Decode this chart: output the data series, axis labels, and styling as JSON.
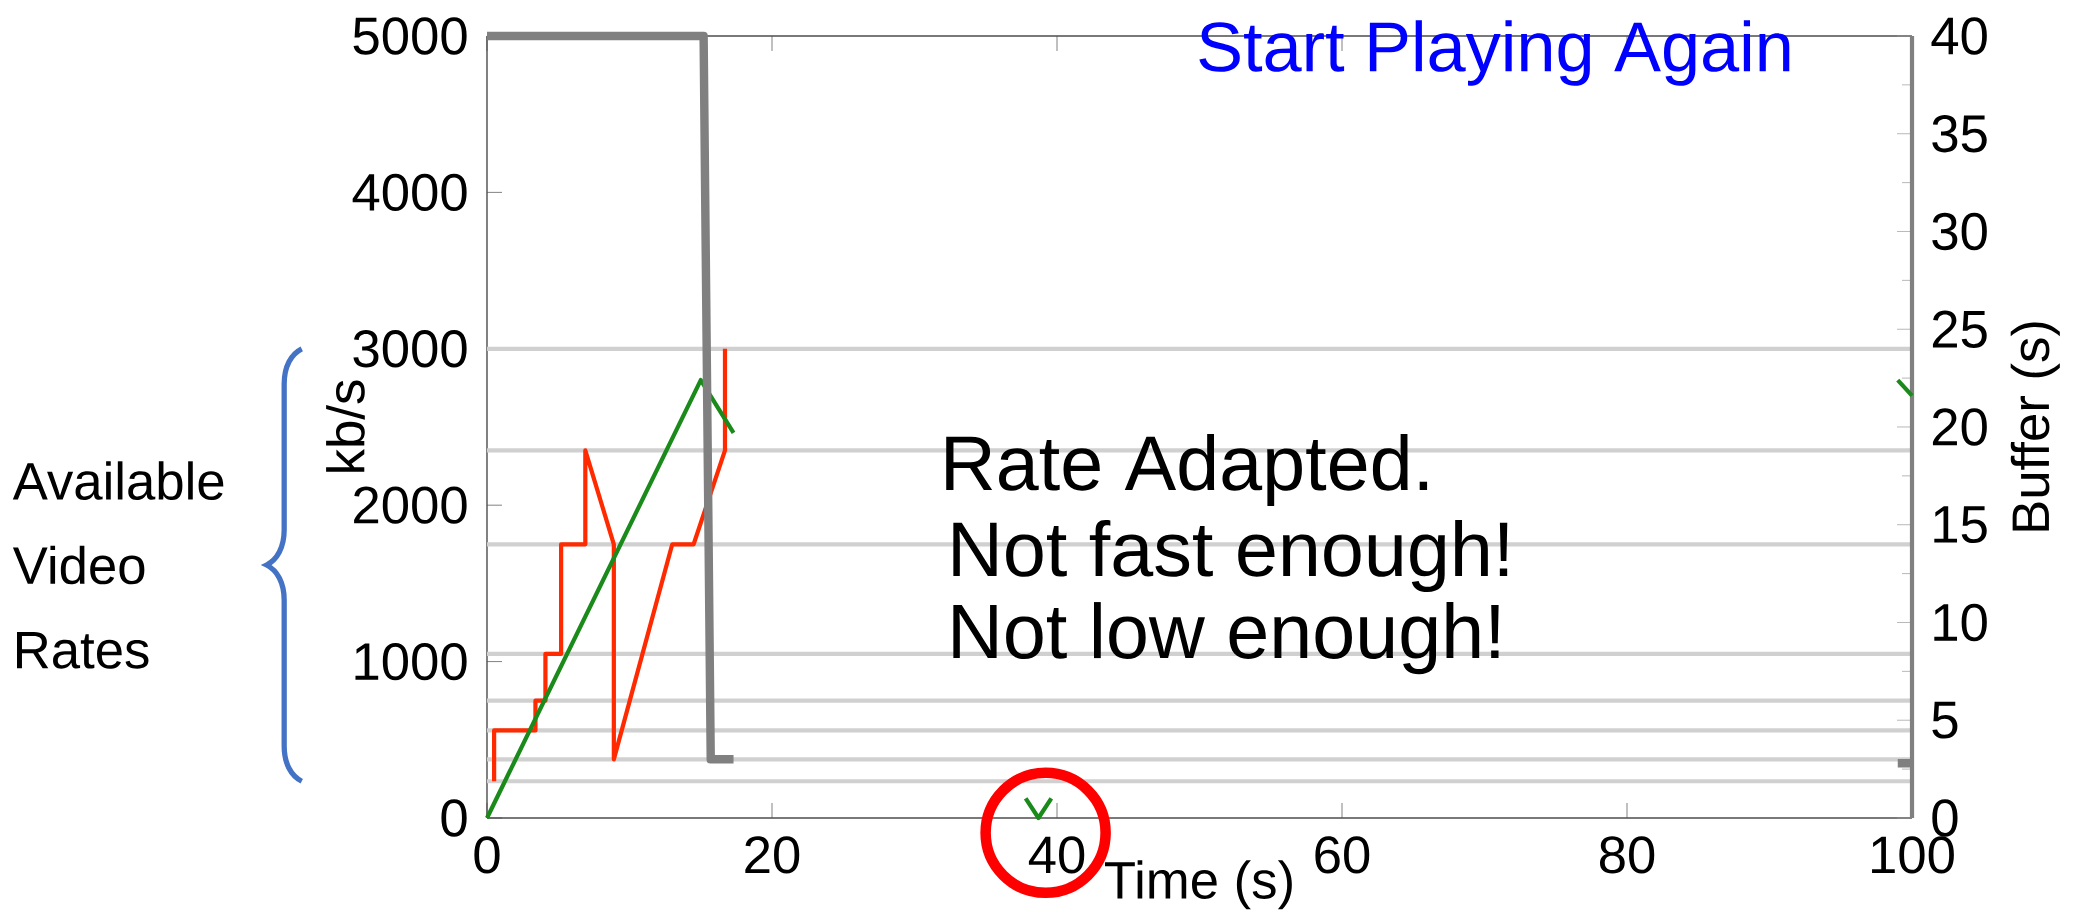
{
  "chart_data": {
    "type": "line",
    "xlabel": "Time (s)",
    "ylabel": "kb/s",
    "y2label": "Buffer (s)",
    "xlim": [
      0,
      100
    ],
    "xticks": [
      0,
      20,
      40,
      60,
      80,
      100
    ],
    "ylim": [
      0,
      5000
    ],
    "yticks": [
      0,
      1000,
      2000,
      3000,
      4000,
      5000
    ],
    "y2lim": [
      0,
      40
    ],
    "y2ticks": [
      0,
      5,
      10,
      15,
      20,
      25,
      30,
      35,
      40
    ],
    "series": [
      {
        "color": "#ff2a00",
        "x": [
          0.5,
          0.5,
          3.4,
          3.4,
          4.1,
          4.1,
          5.2,
          5.2,
          6.9,
          6.9,
          8.9,
          8.9,
          13.0,
          14.5,
          16.7,
          16.7
        ],
        "values": [
          235,
          560,
          560,
          750,
          750,
          1050,
          1050,
          1750,
          1750,
          2350,
          1750,
          375,
          1750,
          1750,
          2350,
          3000
        ]
      },
      {
        "color": "#1a8a1a",
        "axis": "y2",
        "x": [
          0,
          15.0,
          17.3,
          27,
          37.8,
          38.7,
          39.6,
          70,
          99.0,
          100
        ],
        "values": [
          0,
          22.4,
          19.7,
          null,
          1.0,
          0,
          1.0,
          null,
          22.4,
          21.6
        ]
      },
      {
        "color": "#808080",
        "axis": "y2",
        "x": [
          0,
          15.2,
          15.7,
          17.3,
          50,
          99.0,
          100
        ],
        "values": [
          40,
          40,
          3,
          3,
          null,
          2.8,
          2.8
        ]
      }
    ],
    "ref_lines": [
      {
        "axis": "y",
        "value": 235,
        "color": "#d0d0d0"
      },
      {
        "axis": "y",
        "value": 375,
        "color": "#d0d0d0"
      },
      {
        "axis": "y",
        "value": 560,
        "color": "#d0d0d0"
      },
      {
        "axis": "y",
        "value": 750,
        "color": "#d0d0d0"
      },
      {
        "axis": "y",
        "value": 1050,
        "color": "#d0d0d0"
      },
      {
        "axis": "y",
        "value": 1750,
        "color": "#d0d0d0"
      },
      {
        "axis": "y",
        "value": 2350,
        "color": "#d0d0d0"
      },
      {
        "axis": "y",
        "value": 3000,
        "color": "#d0d0d0"
      }
    ],
    "annotations": [
      "Rate Adapted.",
      "Not fast enough!",
      "Not low enough!",
      "Available Video Rates",
      "Start Playing Again"
    ]
  }
}
